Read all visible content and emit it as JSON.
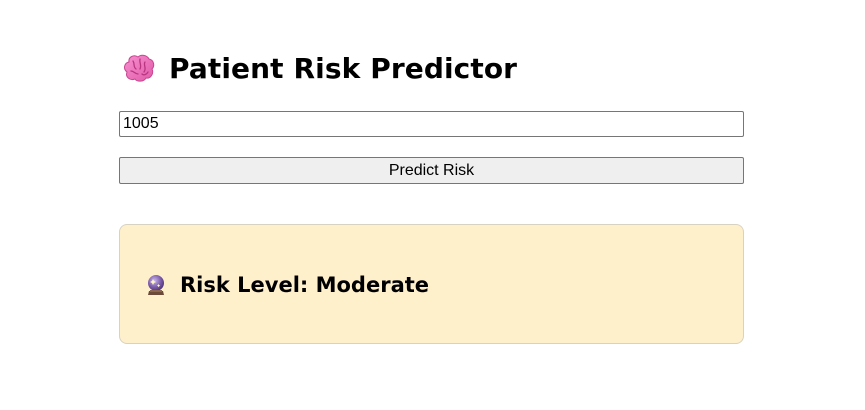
{
  "header": {
    "title": "Patient Risk Predictor",
    "icon": "brain-icon"
  },
  "form": {
    "patient_id_value": "1005",
    "predict_button_label": "Predict Risk"
  },
  "result": {
    "icon": "crystal-ball-icon",
    "risk_label": "Risk Level: Moderate",
    "background_color": "#fff0cc"
  }
}
